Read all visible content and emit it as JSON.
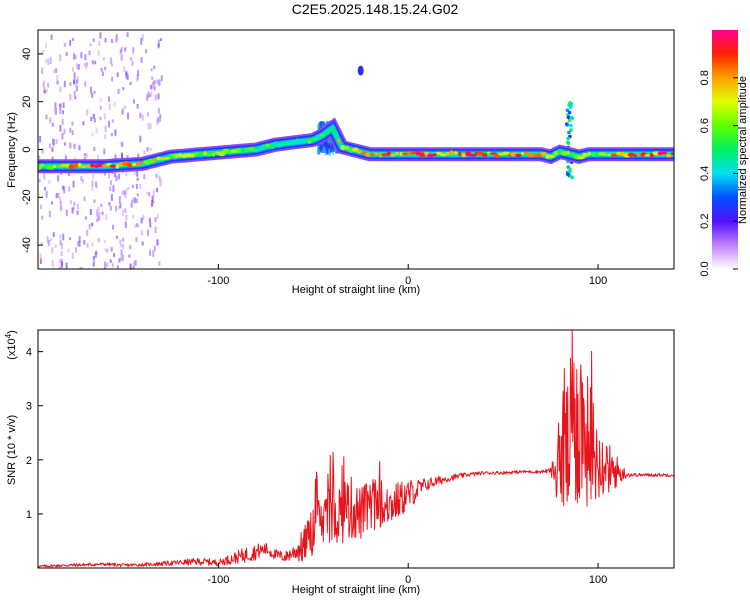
{
  "title": "C2E5.2025.148.15.24.G02",
  "colors": {
    "snr_line": "#e8141c",
    "spectrogram_background": "#ffffff",
    "axes": "#000000"
  },
  "chart_data": [
    {
      "type": "heatmap",
      "xlabel": "Height of straight line (km)",
      "ylabel": "Frequency (Hz)",
      "xlim": [
        -195,
        140
      ],
      "ylim": [
        -50,
        50
      ],
      "xticks": [
        -100,
        0,
        100
      ],
      "yticks": [
        -40,
        -20,
        0,
        20,
        40
      ],
      "grid": false,
      "colorbar": {
        "label": "Normalized spectral amplitude",
        "range": [
          0,
          1
        ],
        "ticks": [
          0.0,
          0.2,
          0.4,
          0.6,
          0.8
        ],
        "colormap": "white-magenta-blue-cyan-green-yellow-red",
        "placement": "right"
      },
      "ridge": {
        "name": "dominant frequency track",
        "x": [
          -195,
          -160,
          -140,
          -125,
          -110,
          -95,
          -80,
          -70,
          -60,
          -50,
          -45,
          -40,
          -35,
          -30,
          -25,
          -20,
          0,
          40,
          70,
          75,
          80,
          85,
          90,
          95,
          100,
          110,
          140
        ],
        "y": [
          -7,
          -7,
          -6,
          -3,
          -2,
          -1,
          0,
          2,
          3,
          4,
          6,
          9,
          1,
          0,
          -1,
          -2,
          -2,
          -2,
          -2,
          -3,
          -1,
          -2,
          -3,
          -2,
          -2,
          -2,
          -2
        ],
        "amplitude": [
          0.65,
          0.95,
          0.8,
          0.65,
          0.7,
          0.7,
          0.55,
          0.55,
          0.45,
          0.55,
          0.55,
          0.5,
          0.85,
          0.75,
          0.75,
          0.95,
          0.95,
          0.9,
          0.85,
          0.7,
          0.6,
          0.6,
          0.7,
          0.7,
          0.7,
          0.9,
          0.95
        ]
      },
      "features": [
        {
          "name": "broadband scatter",
          "x_range": [
            -195,
            -130
          ],
          "y_range": [
            -50,
            50
          ],
          "amplitude": 0.12
        },
        {
          "name": "spur",
          "x_range": [
            -48,
            -38
          ],
          "y_range": [
            0,
            12
          ],
          "amplitude": 0.3
        },
        {
          "name": "isolated blip",
          "x": -25,
          "y": 33,
          "amplitude": 0.25
        },
        {
          "name": "spike",
          "x": 85,
          "y_range": [
            -15,
            20
          ],
          "amplitude": 0.35
        }
      ]
    },
    {
      "type": "line",
      "xlabel": "Height of straight line (km)",
      "ylabel": "SNR (10 * v/v)",
      "scale_label_base": "(x10",
      "scale_label_exp": "4",
      "scale_label_close": ")",
      "xlim": [
        -195,
        140
      ],
      "ylim": [
        0,
        4.4
      ],
      "xticks": [
        -100,
        0,
        100
      ],
      "yticks": [
        1,
        2,
        3,
        4
      ],
      "grid": false,
      "series": [
        {
          "x": [
            -195,
            -180,
            -160,
            -150,
            -140,
            -130,
            -120,
            -110,
            -100,
            -95,
            -90,
            -85,
            -80,
            -75,
            -70,
            -65,
            -60,
            -55,
            -50,
            -45,
            -40,
            -35,
            -30,
            -25,
            -20,
            -15,
            -10,
            -5,
            0,
            5,
            10,
            20,
            30,
            40,
            50,
            60,
            70,
            75,
            80,
            85,
            88,
            90,
            92,
            95,
            100,
            105,
            110,
            115,
            120,
            130,
            140
          ],
          "y": [
            0.03,
            0.05,
            0.07,
            0.05,
            0.06,
            0.08,
            0.1,
            0.12,
            0.1,
            0.15,
            0.2,
            0.25,
            0.3,
            0.35,
            0.25,
            0.2,
            0.3,
            0.4,
            0.7,
            0.9,
            1.0,
            1.05,
            1.1,
            1.0,
            1.15,
            1.2,
            1.15,
            1.25,
            1.35,
            1.45,
            1.55,
            1.65,
            1.72,
            1.76,
            1.76,
            1.78,
            1.78,
            1.8,
            1.8,
            2.3,
            2.6,
            2.8,
            2.6,
            2.3,
            2.0,
            1.85,
            1.78,
            1.73,
            1.72,
            1.72,
            1.72
          ],
          "spread": [
            0.02,
            0.03,
            0.03,
            0.03,
            0.03,
            0.04,
            0.05,
            0.07,
            0.06,
            0.09,
            0.12,
            0.15,
            0.15,
            0.12,
            0.1,
            0.1,
            0.15,
            0.35,
            0.45,
            0.55,
            0.6,
            0.6,
            0.6,
            0.5,
            0.5,
            0.45,
            0.4,
            0.35,
            0.3,
            0.2,
            0.12,
            0.07,
            0.04,
            0.03,
            0.03,
            0.03,
            0.03,
            0.05,
            0.8,
            1.5,
            1.7,
            1.7,
            1.5,
            1.2,
            0.8,
            0.5,
            0.3,
            0.06,
            0.03,
            0.03,
            0.03
          ]
        }
      ]
    }
  ]
}
